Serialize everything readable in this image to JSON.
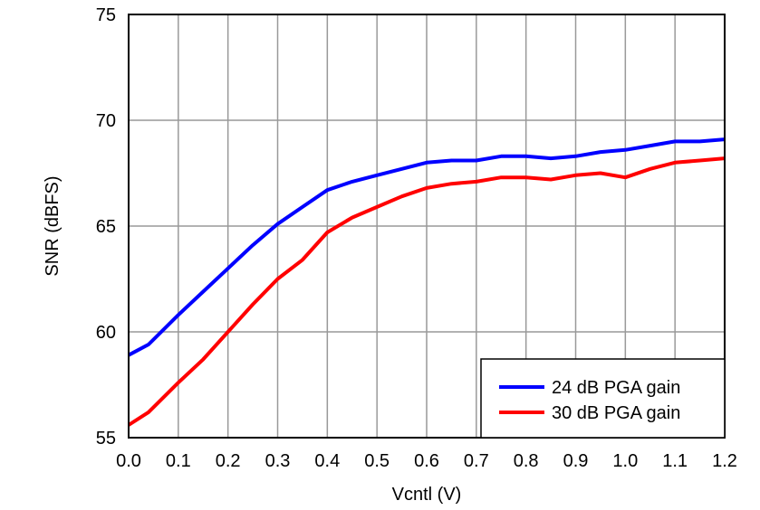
{
  "chart_data": {
    "type": "line",
    "title": "",
    "xlabel": "Vcntl (V)",
    "ylabel": "SNR (dBFS)",
    "xlim": [
      0.0,
      1.2
    ],
    "ylim": [
      55,
      75
    ],
    "xticks": [
      "0.0",
      "0.1",
      "0.2",
      "0.3",
      "0.4",
      "0.5",
      "0.6",
      "0.7",
      "0.8",
      "0.9",
      "1.0",
      "1.1",
      "1.2"
    ],
    "yticks": [
      "55",
      "60",
      "65",
      "70",
      "75"
    ],
    "grid": true,
    "legend_position": "bottom-right",
    "x": [
      0.0,
      0.04,
      0.1,
      0.15,
      0.2,
      0.25,
      0.3,
      0.35,
      0.4,
      0.45,
      0.5,
      0.55,
      0.6,
      0.65,
      0.7,
      0.75,
      0.8,
      0.85,
      0.9,
      0.95,
      1.0,
      1.05,
      1.1,
      1.15,
      1.2
    ],
    "series": [
      {
        "name": "24 dB PGA gain",
        "color": "#0000ff",
        "values": [
          58.9,
          59.4,
          60.8,
          61.9,
          63.0,
          64.1,
          65.1,
          65.9,
          66.7,
          67.1,
          67.4,
          67.7,
          68.0,
          68.1,
          68.1,
          68.3,
          68.3,
          68.2,
          68.3,
          68.5,
          68.6,
          68.8,
          69.0,
          69.0,
          69.1
        ]
      },
      {
        "name": "30 dB PGA gain",
        "color": "#ff0000",
        "values": [
          55.6,
          56.2,
          57.6,
          58.7,
          60.0,
          61.3,
          62.5,
          63.4,
          64.7,
          65.4,
          65.9,
          66.4,
          66.8,
          67.0,
          67.1,
          67.3,
          67.3,
          67.2,
          67.4,
          67.5,
          67.3,
          67.7,
          68.0,
          68.1,
          68.2
        ]
      }
    ]
  }
}
